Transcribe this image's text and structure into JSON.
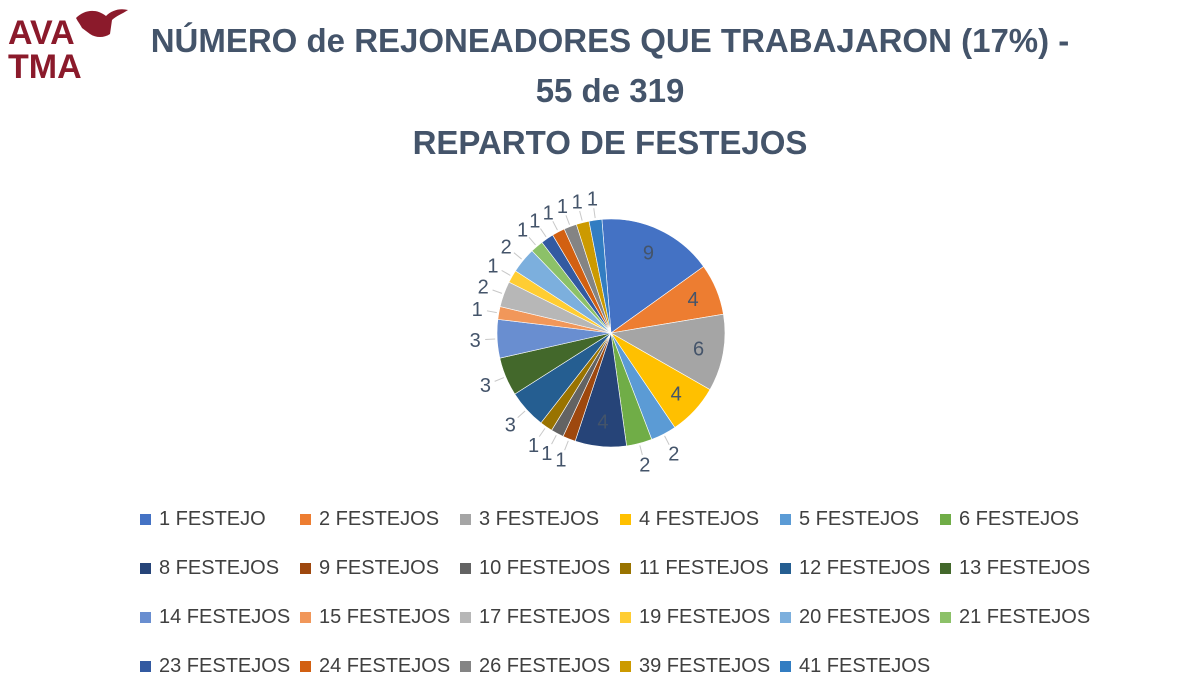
{
  "logo": {
    "line1": "AVA",
    "line2": "TMA"
  },
  "chart_data": {
    "type": "pie",
    "title": "NÚMERO de REJONEADORES QUE TRABAJARON (17%) - 55 de 319",
    "title_line1": "NÚMERO de REJONEADORES QUE TRABAJARON (17%) -",
    "title_line2": "55 de 319",
    "subtitle": "REPARTO DE FESTEJOS",
    "legend_position": "bottom",
    "categories": [
      "1 FESTEJO",
      "2 FESTEJOS",
      "3 FESTEJOS",
      "4 FESTEJOS",
      "5 FESTEJOS",
      "6 FESTEJOS",
      "8 FESTEJOS",
      "9 FESTEJOS",
      "10 FESTEJOS",
      "11 FESTEJOS",
      "12 FESTEJOS",
      "13 FESTEJOS",
      "14 FESTEJOS",
      "15 FESTEJOS",
      "17 FESTEJOS",
      "19 FESTEJOS",
      "20 FESTEJOS",
      "21 FESTEJOS",
      "23 FESTEJOS",
      "24 FESTEJOS",
      "26 FESTEJOS",
      "39 FESTEJOS",
      "41 FESTEJOS"
    ],
    "values": [
      9,
      4,
      6,
      4,
      2,
      2,
      4,
      1,
      1,
      1,
      3,
      3,
      3,
      1,
      2,
      1,
      2,
      1,
      1,
      1,
      1,
      1,
      1
    ],
    "colors": [
      "#4472c4",
      "#ed7d31",
      "#a5a5a5",
      "#ffc000",
      "#5b9bd5",
      "#70ad47",
      "#264478",
      "#9e480e",
      "#636363",
      "#997300",
      "#255e91",
      "#43682b",
      "#698ed0",
      "#f1975a",
      "#b7b7b7",
      "#ffcd33",
      "#7cafdd",
      "#8cc168",
      "#335aa1",
      "#d26012",
      "#848484",
      "#cc9a00",
      "#327dc2"
    ],
    "data_label_color": "#44546a"
  }
}
